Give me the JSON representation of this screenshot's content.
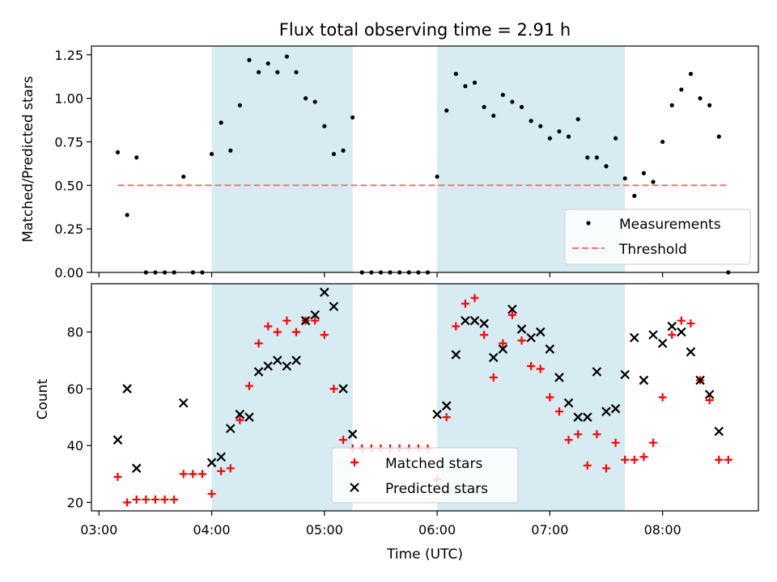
{
  "chart_data": [
    {
      "type": "scatter",
      "title": "Flux total observing time = 2.91 h",
      "xlabel": "",
      "ylabel": "Matched/Predicted stars",
      "xlim": [
        "02:56",
        "08:51"
      ],
      "ylim": [
        0,
        1.3
      ],
      "yticks": [
        "0.00",
        "0.25",
        "0.50",
        "0.75",
        "1.00",
        "1.25"
      ],
      "shaded_intervals": [
        [
          "04:00",
          "05:15"
        ],
        [
          "06:00",
          "07:40"
        ]
      ],
      "threshold": {
        "value": 0.5,
        "x": [
          "03:10",
          "08:35"
        ]
      },
      "legend": {
        "position": "lower right",
        "entries": [
          "Measurements",
          "Threshold"
        ]
      },
      "series": [
        {
          "name": "Measurements",
          "x": [
            "03:10",
            "03:15",
            "03:20",
            "03:25",
            "03:30",
            "03:35",
            "03:40",
            "03:45",
            "03:50",
            "03:55",
            "04:00",
            "04:05",
            "04:10",
            "04:15",
            "04:20",
            "04:25",
            "04:30",
            "04:35",
            "04:40",
            "04:45",
            "04:50",
            "04:55",
            "05:00",
            "05:05",
            "05:10",
            "05:15",
            "05:20",
            "05:25",
            "05:30",
            "05:35",
            "05:40",
            "05:45",
            "05:50",
            "05:55",
            "06:00",
            "06:05",
            "06:10",
            "06:15",
            "06:20",
            "06:25",
            "06:30",
            "06:35",
            "06:40",
            "06:45",
            "06:50",
            "06:55",
            "07:00",
            "07:05",
            "07:10",
            "07:15",
            "07:20",
            "07:25",
            "07:30",
            "07:35",
            "07:40",
            "07:45",
            "07:50",
            "07:55",
            "08:00",
            "08:05",
            "08:10",
            "08:15",
            "08:20",
            "08:25",
            "08:30",
            "08:35"
          ],
          "y": [
            0.69,
            0.33,
            0.66,
            0,
            0,
            0,
            0,
            0.55,
            0,
            0,
            0.68,
            0.86,
            0.7,
            0.96,
            1.22,
            1.15,
            1.2,
            1.15,
            1.24,
            1.15,
            1.0,
            0.98,
            0.84,
            0.68,
            0.7,
            0.89,
            0,
            0,
            0,
            0,
            0,
            0,
            0,
            0,
            0.55,
            0.93,
            1.14,
            1.07,
            1.09,
            0.95,
            0.9,
            1.02,
            0.98,
            0.95,
            0.87,
            0.84,
            0.77,
            0.81,
            0.78,
            0.88,
            0.66,
            0.66,
            0.61,
            0.77,
            0.54,
            0.44,
            0.57,
            0.52,
            0.75,
            0.96,
            1.05,
            1.14,
            1.0,
            0.96,
            0.78,
            0
          ]
        }
      ]
    },
    {
      "type": "scatter",
      "title": "",
      "xlabel": "Time (UTC)",
      "ylabel": "Count",
      "xlim": [
        "02:56",
        "08:51"
      ],
      "ylim": [
        17,
        97
      ],
      "yticks": [
        "20",
        "40",
        "60",
        "80"
      ],
      "xticks": [
        "03:00",
        "04:00",
        "05:00",
        "06:00",
        "07:00",
        "08:00"
      ],
      "shaded_intervals": [
        [
          "04:00",
          "05:15"
        ],
        [
          "06:00",
          "07:40"
        ]
      ],
      "legend": {
        "position": "lower center",
        "entries": [
          "Matched stars",
          "Predicted stars"
        ]
      },
      "series": [
        {
          "name": "Matched stars",
          "x": [
            "03:10",
            "03:15",
            "03:20",
            "03:25",
            "03:30",
            "03:35",
            "03:40",
            "03:45",
            "03:50",
            "03:55",
            "04:00",
            "04:05",
            "04:10",
            "04:15",
            "04:20",
            "04:25",
            "04:30",
            "04:35",
            "04:40",
            "04:45",
            "04:50",
            "04:55",
            "05:00",
            "05:05",
            "05:10",
            "05:15",
            "05:20",
            "05:25",
            "05:30",
            "05:35",
            "05:40",
            "05:45",
            "05:50",
            "05:55",
            "06:00",
            "06:05",
            "06:10",
            "06:15",
            "06:20",
            "06:25",
            "06:30",
            "06:35",
            "06:40",
            "06:45",
            "06:50",
            "06:55",
            "07:00",
            "07:05",
            "07:10",
            "07:15",
            "07:20",
            "07:25",
            "07:30",
            "07:35",
            "07:40",
            "07:45",
            "07:50",
            "07:55",
            "08:00",
            "08:05",
            "08:10",
            "08:15",
            "08:20",
            "08:25",
            "08:30",
            "08:35"
          ],
          "y": [
            29,
            20,
            21,
            21,
            21,
            21,
            21,
            30,
            30,
            30,
            23,
            31,
            32,
            49,
            61,
            76,
            82,
            80,
            84,
            80,
            84,
            84,
            79,
            60,
            42,
            39,
            39,
            39,
            39,
            39,
            39,
            39,
            39,
            39,
            28,
            50,
            82,
            90,
            92,
            79,
            64,
            76,
            86,
            77,
            68,
            67,
            57,
            52,
            42,
            44,
            33,
            44,
            32,
            41,
            35,
            35,
            36,
            41,
            57,
            79,
            84,
            83,
            63,
            56,
            35,
            35
          ]
        },
        {
          "name": "Predicted stars",
          "x": [
            "03:10",
            "03:15",
            "03:20",
            "03:45",
            "04:00",
            "04:05",
            "04:10",
            "04:15",
            "04:20",
            "04:25",
            "04:30",
            "04:35",
            "04:40",
            "04:45",
            "04:50",
            "04:55",
            "05:00",
            "05:05",
            "05:10",
            "05:15",
            "06:00",
            "06:05",
            "06:10",
            "06:15",
            "06:20",
            "06:25",
            "06:30",
            "06:35",
            "06:40",
            "06:45",
            "06:50",
            "06:55",
            "07:00",
            "07:05",
            "07:10",
            "07:15",
            "07:20",
            "07:25",
            "07:30",
            "07:35",
            "07:40",
            "07:45",
            "07:50",
            "07:55",
            "08:00",
            "08:05",
            "08:10",
            "08:15",
            "08:20",
            "08:25",
            "08:30"
          ],
          "y": [
            42,
            60,
            32,
            55,
            34,
            36,
            46,
            51,
            50,
            66,
            68,
            70,
            68,
            70,
            84,
            86,
            94,
            89,
            60,
            44,
            51,
            54,
            72,
            84,
            84,
            83,
            71,
            74,
            88,
            81,
            78,
            80,
            74,
            64,
            55,
            50,
            50,
            66,
            52,
            53,
            65,
            78,
            63,
            79,
            76,
            82,
            80,
            73,
            63,
            58,
            45
          ]
        }
      ]
    }
  ]
}
